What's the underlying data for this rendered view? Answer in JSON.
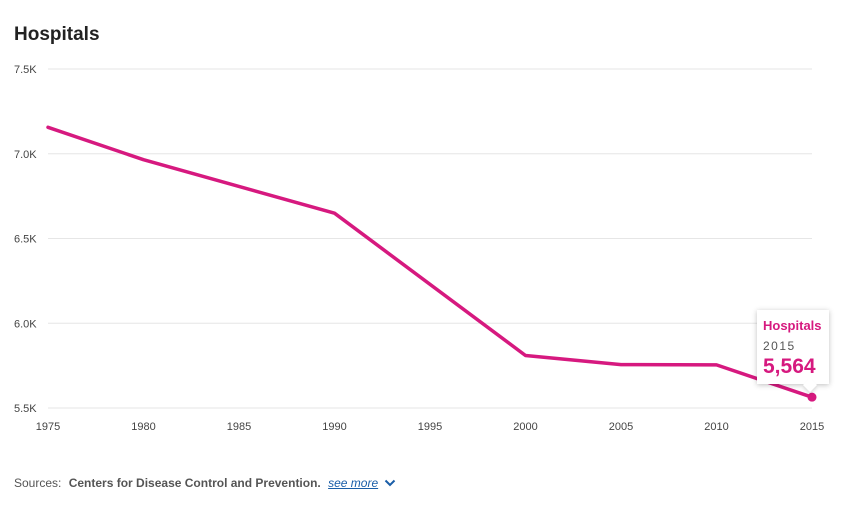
{
  "chart_data": {
    "type": "line",
    "title": "Hospitals",
    "x": [
      1975,
      1980,
      1990,
      2000,
      2005,
      2010,
      2015
    ],
    "series": [
      {
        "name": "Hospitals",
        "values": [
          7156,
          6965,
          6649,
          5810,
          5756,
          5754,
          5564
        ]
      }
    ],
    "x_ticks": [
      "1975",
      "1980",
      "1985",
      "1990",
      "1995",
      "2000",
      "2005",
      "2010",
      "2015"
    ],
    "y_ticks": [
      "7.5K",
      "7.0K",
      "6.5K",
      "6.0K",
      "5.5K"
    ],
    "ylim": [
      5500,
      7500
    ],
    "xlim": [
      1975,
      2015
    ],
    "grid": true,
    "color": "#d6197f"
  },
  "tooltip": {
    "series": "Hospitals",
    "year": "2015",
    "value": "5,564"
  },
  "sources": {
    "label": "Sources:",
    "name": "Centers for Disease Control and Prevention.",
    "link": "see more"
  }
}
